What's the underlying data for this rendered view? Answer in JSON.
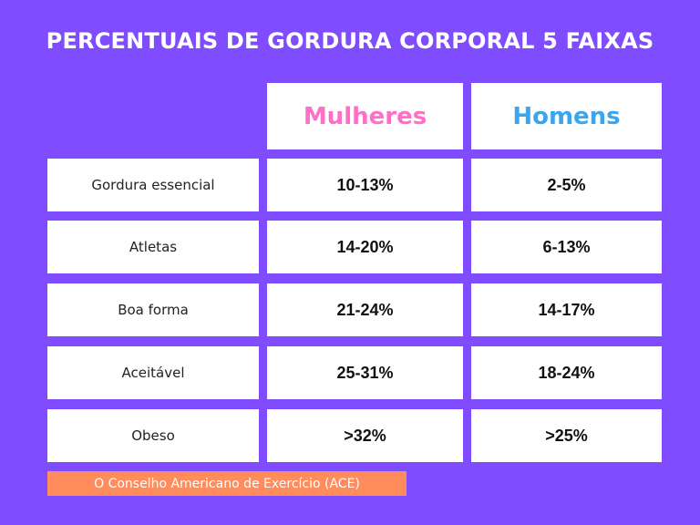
{
  "title": "PERCENTUAIS DE GORDURA CORPORAL 5 FAIXAS",
  "headers": {
    "women": "Mulheres",
    "men": "Homens"
  },
  "rows": [
    {
      "label": "Gordura essencial",
      "women": "10-13%",
      "men": "2-5%"
    },
    {
      "label": "Atletas",
      "women": "14-20%",
      "men": "6-13%"
    },
    {
      "label": "Boa forma",
      "women": "21-24%",
      "men": "14-17%"
    },
    {
      "label": "Aceitável",
      "women": "25-31%",
      "men": "18-24%"
    },
    {
      "label": "Obeso",
      "women": ">32%",
      "men": ">25%"
    }
  ],
  "source": "O Conselho Americano de Exercício (ACE)",
  "colors": {
    "background": "#7f4cff",
    "women": "#ff6ec7",
    "men": "#3aa6f0",
    "source_bg": "#ff8c5a"
  }
}
